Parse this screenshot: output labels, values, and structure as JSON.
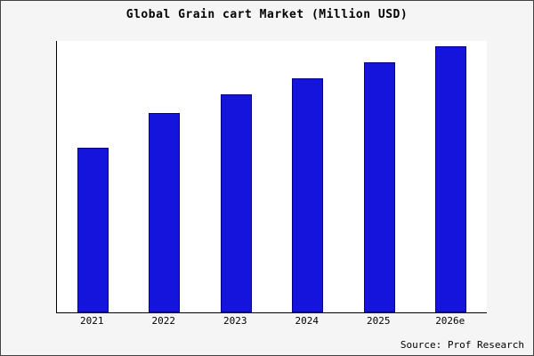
{
  "title": "Global Grain cart Market (Million USD)",
  "source": "Source: Prof Research",
  "colors": {
    "bar_fill": "#1414dd",
    "bar_edge": "#00008b",
    "background": "#f5f5f5",
    "plot_background": "#ffffff"
  },
  "chart_data": {
    "type": "bar",
    "title": "Global Grain cart Market (Million USD)",
    "categories": [
      "2021",
      "2022",
      "2023",
      "2024",
      "2025",
      "2026e"
    ],
    "values": [
      62,
      75,
      82,
      88,
      94,
      100
    ],
    "xlabel": "",
    "ylabel": "",
    "ylim": [
      0,
      102
    ],
    "grid": false,
    "legend": false
  }
}
